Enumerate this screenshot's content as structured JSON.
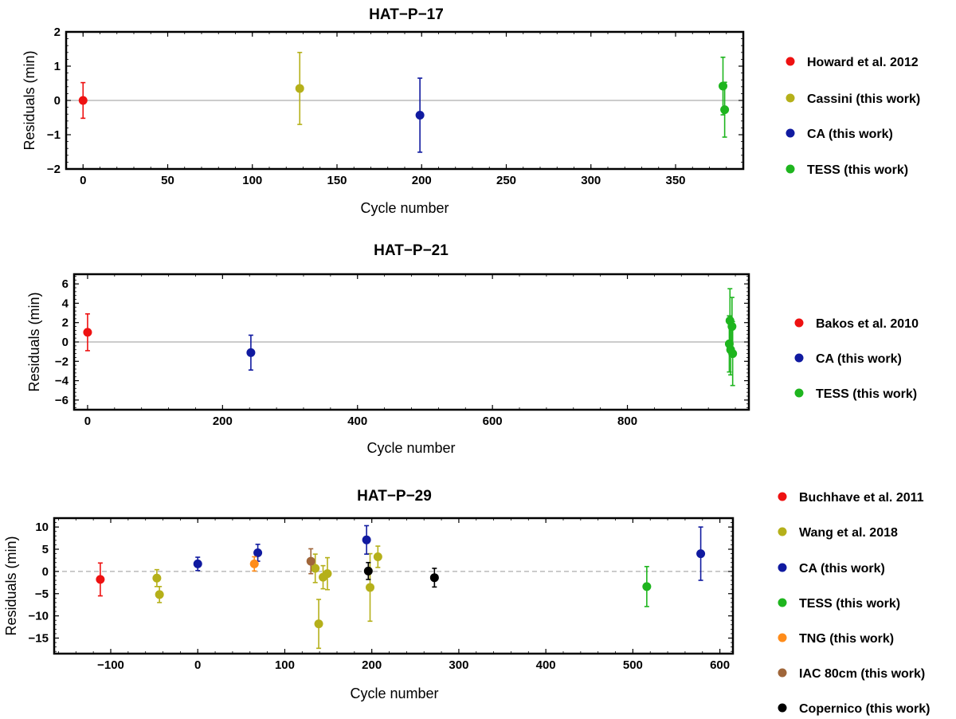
{
  "colors": {
    "red": "#ee1111",
    "olive": "#b5b01a",
    "blue": "#101aa0",
    "green": "#1eb51e",
    "orange": "#ff8c1a",
    "brown": "#a0663a",
    "black": "#000000",
    "zero": "#999999"
  },
  "chart_data": [
    {
      "type": "scatter",
      "title": "HAT−P−17",
      "xlabel": "Cycle number",
      "ylabel": "Residuals (min)",
      "xlim": [
        -10,
        390
      ],
      "ylim": [
        -2,
        2
      ],
      "xticks": [
        0,
        50,
        100,
        150,
        200,
        250,
        300,
        350
      ],
      "xtick_labels": [
        "0",
        "50",
        "100",
        "150",
        "200",
        "250",
        "300",
        "350"
      ],
      "yticks": [
        -2,
        -1,
        0,
        1,
        2
      ],
      "ytick_labels": [
        "−2",
        "−1",
        "0",
        "1",
        "2"
      ],
      "zero_line": "solid",
      "series": [
        {
          "name": "Howard et al. 2012",
          "color": "red",
          "points": [
            {
              "x": 0,
              "y": 0,
              "err": 0.52
            }
          ]
        },
        {
          "name": "Cassini (this work)",
          "color": "olive",
          "points": [
            {
              "x": 128,
              "y": 0.35,
              "err": 1.05
            }
          ]
        },
        {
          "name": "CA (this work)",
          "color": "blue",
          "points": [
            {
              "x": 199,
              "y": -0.43,
              "err": 1.08
            }
          ]
        },
        {
          "name": "TESS (this work)",
          "color": "green",
          "points": [
            {
              "x": 378,
              "y": 0.42,
              "err": 0.84
            },
            {
              "x": 379,
              "y": -0.27,
              "err": 0.8
            }
          ]
        }
      ]
    },
    {
      "type": "scatter",
      "title": "HAT−P−21",
      "xlabel": "Cycle number",
      "ylabel": "Residuals (min)",
      "xlim": [
        -20,
        980
      ],
      "ylim": [
        -7,
        7
      ],
      "xticks": [
        0,
        200,
        400,
        600,
        800
      ],
      "xtick_labels": [
        "0",
        "200",
        "400",
        "600",
        "800"
      ],
      "yticks": [
        -6,
        -4,
        -2,
        0,
        2,
        4,
        6
      ],
      "ytick_labels": [
        "−6",
        "−4",
        "−2",
        "0",
        "2",
        "4",
        "6"
      ],
      "zero_line": "solid",
      "series": [
        {
          "name": "Bakos et al. 2010",
          "color": "red",
          "points": [
            {
              "x": 0,
              "y": 1.0,
              "err": 1.9
            }
          ]
        },
        {
          "name": "CA (this work)",
          "color": "blue",
          "points": [
            {
              "x": 242,
              "y": -1.1,
              "err": 1.8
            }
          ]
        },
        {
          "name": "TESS (this work)",
          "color": "green",
          "points": [
            {
              "x": 951,
              "y": -0.2,
              "err": 2.9
            },
            {
              "x": 952,
              "y": 2.2,
              "err": 3.3
            },
            {
              "x": 953,
              "y": -0.8,
              "err": 2.6
            },
            {
              "x": 955,
              "y": 1.6,
              "err": 3.0
            },
            {
              "x": 956,
              "y": -1.2,
              "err": 3.3
            }
          ]
        }
      ]
    },
    {
      "type": "scatter",
      "title": "HAT−P−29",
      "xlabel": "Cycle number",
      "ylabel": "Residuals (min)",
      "xlim": [
        -165,
        615
      ],
      "ylim": [
        -18.5,
        12
      ],
      "xticks": [
        -100,
        0,
        100,
        200,
        300,
        400,
        500,
        600
      ],
      "xtick_labels": [
        "−100",
        "0",
        "100",
        "200",
        "300",
        "400",
        "500",
        "600"
      ],
      "yticks": [
        -15,
        -10,
        -5,
        0,
        5,
        10
      ],
      "ytick_labels": [
        "−15",
        "−10",
        "−5",
        "0",
        "5",
        "10"
      ],
      "zero_line": "dashed",
      "series": [
        {
          "name": "Buchhave et al. 2011",
          "color": "red",
          "points": [
            {
              "x": -112,
              "y": -1.8,
              "err": 3.7
            }
          ]
        },
        {
          "name": "Wang et al. 2018",
          "color": "olive",
          "points": [
            {
              "x": -47,
              "y": -1.5,
              "err": 1.9
            },
            {
              "x": -44,
              "y": -5.2,
              "err": 1.8
            },
            {
              "x": 135,
              "y": 0.7,
              "err": 3.2
            },
            {
              "x": 139,
              "y": -11.8,
              "err": 5.5
            },
            {
              "x": 144,
              "y": -1.3,
              "err": 2.6
            },
            {
              "x": 149,
              "y": -0.5,
              "err": 3.6
            },
            {
              "x": 198,
              "y": -3.6,
              "err": 7.6
            },
            {
              "x": 207,
              "y": 3.3,
              "err": 2.4
            }
          ]
        },
        {
          "name": "CA (this work)",
          "color": "blue",
          "points": [
            {
              "x": 0,
              "y": 1.7,
              "err": 1.5
            },
            {
              "x": 69,
              "y": 4.2,
              "err": 1.9
            },
            {
              "x": 194,
              "y": 7.1,
              "err": 3.2
            },
            {
              "x": 578,
              "y": 4.0,
              "err": 6.0
            }
          ]
        },
        {
          "name": "TESS (this work)",
          "color": "green",
          "points": [
            {
              "x": 516,
              "y": -3.4,
              "err": 4.5
            }
          ]
        },
        {
          "name": "TNG (this work)",
          "color": "orange",
          "points": [
            {
              "x": 65,
              "y": 1.7,
              "err": 1.6
            }
          ]
        },
        {
          "name": "IAC 80cm (this work)",
          "color": "brown",
          "points": [
            {
              "x": 130,
              "y": 2.3,
              "err": 2.8
            }
          ]
        },
        {
          "name": "Copernico (this work)",
          "color": "black",
          "points": [
            {
              "x": 196,
              "y": 0.1,
              "err": 1.9
            },
            {
              "x": 272,
              "y": -1.4,
              "err": 2.1
            }
          ]
        }
      ]
    }
  ]
}
